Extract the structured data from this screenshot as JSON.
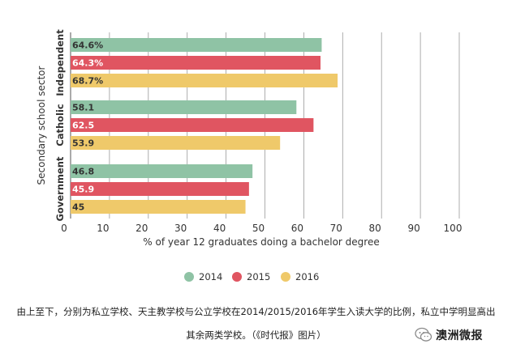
{
  "chart_data": {
    "type": "bar",
    "orientation": "horizontal",
    "groups": [
      "Independent",
      "Catholic",
      "Government"
    ],
    "series": [
      {
        "name": "2014",
        "color": "#8fc3a5",
        "values": [
          64.6,
          58.1,
          46.8
        ],
        "labels": [
          "64.6%",
          "58.1",
          "46.8"
        ]
      },
      {
        "name": "2015",
        "color": "#e05561",
        "values": [
          64.3,
          62.5,
          45.9
        ],
        "labels": [
          "64.3%",
          "62.5",
          "45.9"
        ]
      },
      {
        "name": "2016",
        "color": "#efc96a",
        "values": [
          68.7,
          53.9,
          45
        ],
        "labels": [
          "68.7%",
          "53.9",
          "45"
        ]
      }
    ],
    "ylabel": "Secondary school sector",
    "xlabel": "% of year 12 graduates doing a bachelor degree",
    "xlim": [
      0,
      100
    ],
    "xticks": [
      0,
      10,
      20,
      30,
      40,
      50,
      60,
      70,
      80,
      90,
      100
    ],
    "grid": true,
    "legend_position": "bottom"
  },
  "caption": {
    "line1": "由上至下，分别为私立学校、天主教学校与公立学校在2014/2015/2016年学生入读大学的比例，私立中学明显高出",
    "line2": "其余两类学校。（《时代报》图片）"
  },
  "brand": {
    "name": "澳洲微报",
    "icon": "wechat-icon"
  }
}
